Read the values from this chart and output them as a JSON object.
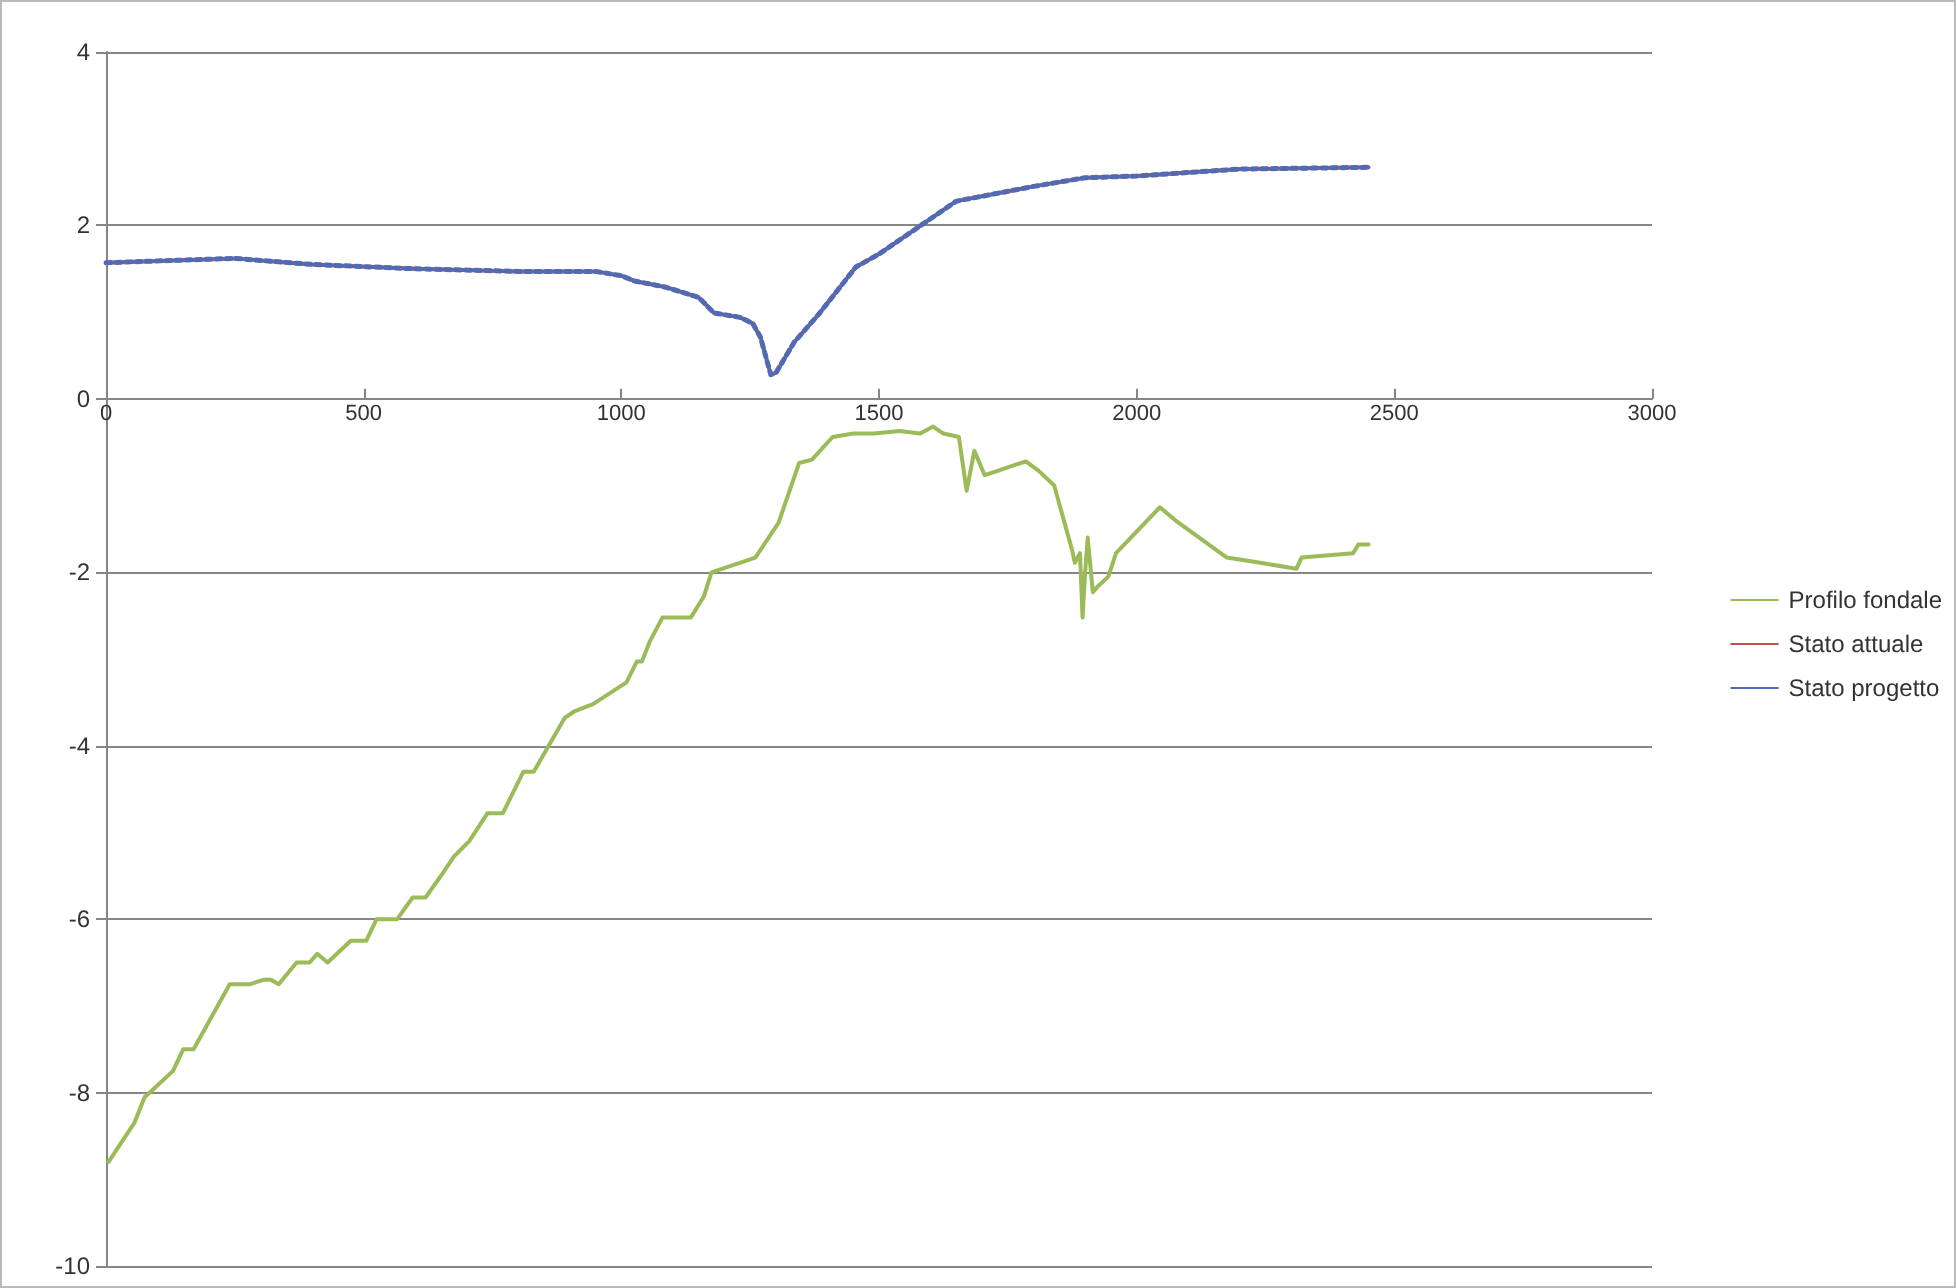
{
  "chart_data": {
    "type": "line",
    "xlim": [
      0,
      3000
    ],
    "xticks": [
      0,
      500,
      1000,
      1500,
      2000,
      2500,
      3000
    ],
    "ylim": [
      -10,
      4
    ],
    "yticks": [
      -10,
      -8,
      -6,
      -4,
      -2,
      0,
      2,
      4
    ],
    "grid": "y",
    "legend": "right",
    "marker": "none",
    "series": [
      {
        "name": "Profilo fondale",
        "color": "#9bbb59",
        "line_style": "solid",
        "x": [
          5,
          55,
          75,
          85,
          130,
          150,
          170,
          240,
          280,
          305,
          320,
          335,
          370,
          395,
          410,
          430,
          475,
          505,
          525,
          565,
          595,
          620,
          650,
          675,
          705,
          740,
          770,
          810,
          830,
          890,
          910,
          945,
          1010,
          1030,
          1040,
          1055,
          1080,
          1135,
          1160,
          1175,
          1260,
          1305,
          1345,
          1370,
          1410,
          1450,
          1490,
          1540,
          1580,
          1605,
          1625,
          1655,
          1670,
          1685,
          1705,
          1730,
          1785,
          1810,
          1840,
          1875,
          1880,
          1890,
          1895,
          1900,
          1905,
          1915,
          1925,
          1945,
          1960,
          2045,
          2075,
          2175,
          2240,
          2310,
          2320,
          2420,
          2430,
          2450
        ],
        "values": [
          -8.8,
          -8.35,
          -8.05,
          -8.0,
          -7.75,
          -7.5,
          -7.5,
          -6.75,
          -6.75,
          -6.7,
          -6.7,
          -6.75,
          -6.5,
          -6.5,
          -6.4,
          -6.5,
          -6.25,
          -6.25,
          -6.0,
          -6.0,
          -5.75,
          -5.75,
          -5.5,
          -5.28,
          -5.1,
          -4.78,
          -4.78,
          -4.3,
          -4.3,
          -3.68,
          -3.6,
          -3.52,
          -3.27,
          -3.03,
          -3.03,
          -2.8,
          -2.52,
          -2.52,
          -2.28,
          -2.0,
          -1.83,
          -1.43,
          -0.74,
          -0.7,
          -0.44,
          -0.4,
          -0.4,
          -0.37,
          -0.4,
          -0.32,
          -0.4,
          -0.44,
          -1.06,
          -0.6,
          -0.88,
          -0.83,
          -0.72,
          -0.83,
          -1.0,
          -1.75,
          -1.89,
          -1.78,
          -2.52,
          -2.0,
          -1.6,
          -2.23,
          -2.16,
          -2.05,
          -1.78,
          -1.25,
          -1.4,
          -1.83,
          -1.89,
          -1.96,
          -1.83,
          -1.78,
          -1.68,
          -1.68
        ]
      },
      {
        "name": "Stato attuale",
        "color": "#c0504d",
        "line_style": "solid",
        "x": [
          0,
          250,
          400,
          600,
          800,
          950,
          1000,
          1025,
          1085,
          1150,
          1180,
          1230,
          1255,
          1270,
          1290,
          1300,
          1335,
          1385,
          1455,
          1500,
          1650,
          1800,
          1900,
          2000,
          2200,
          2450
        ],
        "values": [
          1.57,
          1.62,
          1.55,
          1.5,
          1.47,
          1.47,
          1.42,
          1.36,
          1.29,
          1.17,
          0.99,
          0.94,
          0.87,
          0.71,
          0.28,
          0.3,
          0.65,
          0.99,
          1.52,
          1.67,
          2.28,
          2.45,
          2.55,
          2.57,
          2.65,
          2.67
        ]
      },
      {
        "name": "Stato progetto",
        "color": "#4f6bb5",
        "line_style": "dotted",
        "x": [
          0,
          250,
          400,
          600,
          800,
          950,
          1000,
          1025,
          1085,
          1150,
          1180,
          1230,
          1255,
          1270,
          1290,
          1300,
          1335,
          1385,
          1455,
          1500,
          1650,
          1800,
          1900,
          2000,
          2200,
          2450
        ],
        "values": [
          1.57,
          1.62,
          1.55,
          1.5,
          1.47,
          1.47,
          1.42,
          1.36,
          1.29,
          1.17,
          0.99,
          0.94,
          0.87,
          0.71,
          0.28,
          0.3,
          0.65,
          0.99,
          1.52,
          1.67,
          2.28,
          2.45,
          2.55,
          2.57,
          2.65,
          2.67
        ]
      }
    ]
  }
}
